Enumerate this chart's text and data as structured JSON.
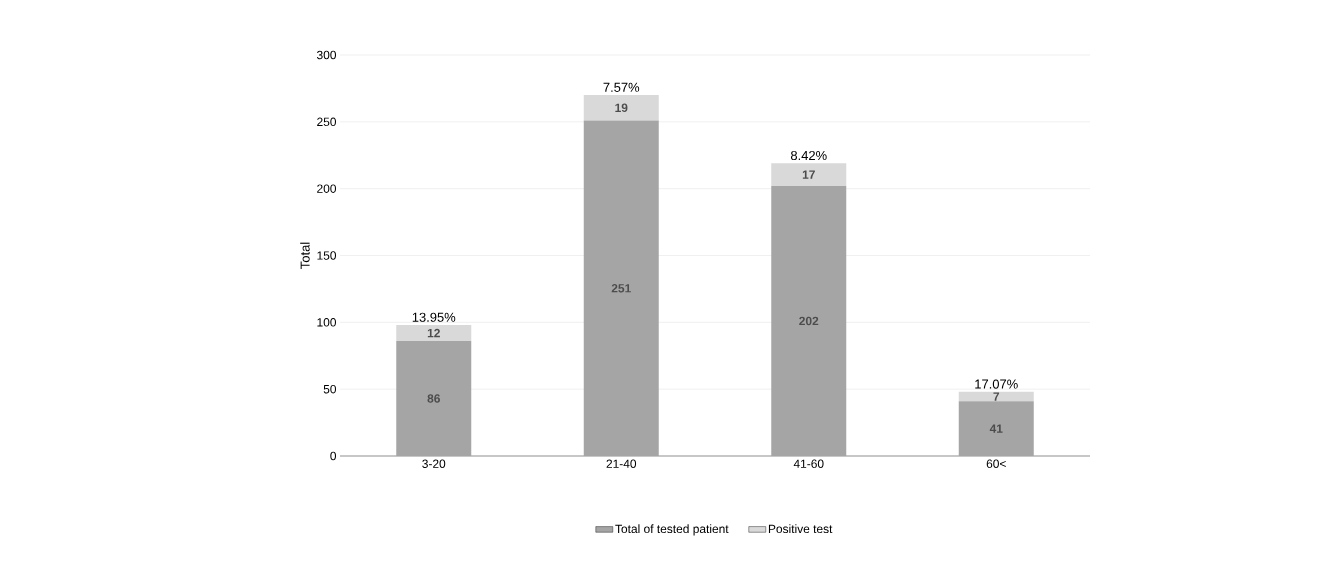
{
  "chart_data": {
    "type": "bar",
    "stacked": true,
    "ylabel": "Total",
    "categories": [
      "3-20",
      "21-40",
      "41-60",
      "60<"
    ],
    "series": [
      {
        "name": "Total of tested patient",
        "color": "#a5a5a5",
        "values": [
          86,
          251,
          202,
          41
        ]
      },
      {
        "name": "Positive test",
        "color": "#d9d9d9",
        "values": [
          12,
          19,
          17,
          7
        ]
      }
    ],
    "annotations": [
      {
        "text": "13.95%",
        "x": "3-20",
        "y": 98
      },
      {
        "text": "7.57%",
        "x": "21-40",
        "y": 270
      },
      {
        "text": "8.42%",
        "x": "41-60",
        "y": 219
      },
      {
        "text": "17.07%",
        "x": "60<",
        "y": 48
      }
    ],
    "data_labels": true,
    "ylim": [
      0,
      300
    ],
    "yticks": [
      0,
      50,
      100,
      150,
      200,
      250,
      300
    ],
    "grid": "y",
    "legend": "bottom"
  }
}
